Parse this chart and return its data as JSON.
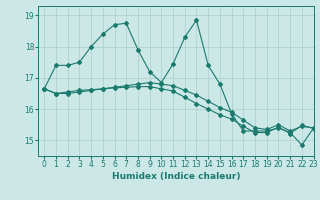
{
  "title": "",
  "xlabel": "Humidex (Indice chaleur)",
  "xlim": [
    -0.5,
    23
  ],
  "ylim": [
    14.5,
    19.3
  ],
  "yticks": [
    15,
    16,
    17,
    18,
    19
  ],
  "xticks": [
    0,
    1,
    2,
    3,
    4,
    5,
    6,
    7,
    8,
    9,
    10,
    11,
    12,
    13,
    14,
    15,
    16,
    17,
    18,
    19,
    20,
    21,
    22,
    23
  ],
  "background_color": "#cce8e6",
  "grid_color": "#aacfcc",
  "line_color": "#1a7a6e",
  "line1_x": [
    0,
    1,
    2,
    3,
    4,
    5,
    6,
    7,
    8,
    9,
    10,
    11,
    12,
    13,
    14,
    15,
    16,
    17,
    18,
    19,
    20,
    21,
    22,
    23
  ],
  "line1_y": [
    16.65,
    16.5,
    16.5,
    16.55,
    16.6,
    16.65,
    16.7,
    16.75,
    16.8,
    16.85,
    16.8,
    16.75,
    16.6,
    16.45,
    16.25,
    16.05,
    15.9,
    15.65,
    15.4,
    15.35,
    15.5,
    15.3,
    15.45,
    15.4
  ],
  "line2_x": [
    0,
    1,
    2,
    3,
    4,
    5,
    6,
    7,
    8,
    9,
    10,
    11,
    12,
    13,
    14,
    15,
    16,
    17,
    18,
    19,
    20,
    21,
    22,
    23
  ],
  "line2_y": [
    16.65,
    17.4,
    17.4,
    17.5,
    18.0,
    18.4,
    18.7,
    18.75,
    17.9,
    17.2,
    16.85,
    17.45,
    18.3,
    18.85,
    17.4,
    16.8,
    15.85,
    15.3,
    15.3,
    15.3,
    15.4,
    15.25,
    14.85,
    15.4
  ],
  "line3_x": [
    0,
    1,
    2,
    3,
    4,
    5,
    6,
    7,
    8,
    9,
    10,
    11,
    12,
    13,
    14,
    15,
    16,
    17,
    18,
    19,
    20,
    21,
    22,
    23
  ],
  "line3_y": [
    16.65,
    16.5,
    16.55,
    16.6,
    16.62,
    16.65,
    16.68,
    16.7,
    16.72,
    16.72,
    16.65,
    16.58,
    16.38,
    16.18,
    16.0,
    15.82,
    15.68,
    15.45,
    15.25,
    15.25,
    15.42,
    15.22,
    15.48,
    15.38
  ]
}
